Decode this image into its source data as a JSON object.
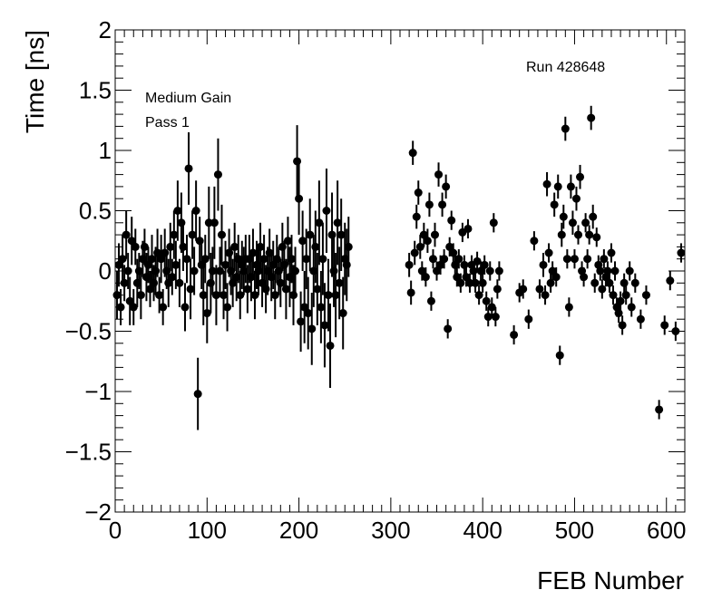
{
  "chart_data": {
    "type": "scatter",
    "title": "",
    "xlabel": "FEB Number",
    "ylabel": "Time [ns]",
    "xlim": [
      0,
      620
    ],
    "ylim": [
      -2,
      2
    ],
    "x_ticks": [
      0,
      100,
      200,
      300,
      400,
      500,
      600
    ],
    "y_ticks": [
      -2,
      -1.5,
      -1,
      -0.5,
      0,
      0.5,
      1,
      1.5,
      2
    ],
    "x_tick_labels": [
      "0",
      "100",
      "200",
      "300",
      "400",
      "500",
      "600"
    ],
    "y_tick_labels": [
      "−2",
      "−1.5",
      "−1",
      "−0.5",
      "0",
      "0.5",
      "1",
      "1.5",
      "2"
    ],
    "annotations": {
      "gain": "Medium Gain",
      "pass": "Pass 1",
      "run": "Run 428648"
    },
    "grid": false,
    "marker_color": "#000000",
    "series": [
      {
        "points": [
          [
            2,
            -0.2,
            0.2
          ],
          [
            4,
            0.05,
            0.18
          ],
          [
            6,
            -0.3,
            0.15
          ],
          [
            8,
            0.1,
            0.2
          ],
          [
            10,
            -0.1,
            0.15
          ],
          [
            12,
            0.3,
            0.2
          ],
          [
            14,
            0.0,
            0.15
          ],
          [
            16,
            -0.25,
            0.2
          ],
          [
            18,
            0.25,
            0.2
          ],
          [
            20,
            -0.3,
            0.15
          ],
          [
            22,
            0.2,
            0.15
          ],
          [
            24,
            -0.1,
            0.2
          ],
          [
            26,
            0.0,
            0.15
          ],
          [
            28,
            -0.2,
            0.2
          ],
          [
            30,
            0.1,
            0.15
          ],
          [
            32,
            0.2,
            0.15
          ],
          [
            34,
            -0.05,
            0.2
          ],
          [
            36,
            0.05,
            0.15
          ],
          [
            38,
            -0.15,
            0.15
          ],
          [
            40,
            0.1,
            0.2
          ],
          [
            42,
            -0.1,
            0.15
          ],
          [
            44,
            0.0,
            0.2
          ],
          [
            46,
            0.15,
            0.2
          ],
          [
            48,
            -0.2,
            0.15
          ],
          [
            50,
            0.1,
            0.2
          ],
          [
            52,
            -0.3,
            0.15
          ],
          [
            54,
            0.15,
            0.2
          ],
          [
            56,
            0.0,
            0.15
          ],
          [
            58,
            -0.1,
            0.2
          ],
          [
            60,
            0.2,
            0.2
          ],
          [
            62,
            -0.05,
            0.15
          ],
          [
            64,
            0.3,
            0.2
          ],
          [
            66,
            0.05,
            0.2
          ],
          [
            68,
            0.5,
            0.25
          ],
          [
            70,
            -0.1,
            0.2
          ],
          [
            72,
            0.4,
            0.25
          ],
          [
            74,
            0.2,
            0.2
          ],
          [
            76,
            -0.3,
            0.2
          ],
          [
            78,
            0.1,
            0.2
          ],
          [
            80,
            0.85,
            0.3
          ],
          [
            82,
            -0.15,
            0.25
          ],
          [
            84,
            0.3,
            0.2
          ],
          [
            86,
            0.0,
            0.2
          ],
          [
            88,
            0.5,
            0.25
          ],
          [
            90,
            -1.02,
            0.3
          ],
          [
            92,
            0.25,
            0.2
          ],
          [
            94,
            0.05,
            0.2
          ],
          [
            96,
            -0.2,
            0.25
          ],
          [
            98,
            0.1,
            0.2
          ],
          [
            100,
            -0.35,
            0.25
          ],
          [
            102,
            0.4,
            0.3
          ],
          [
            104,
            -0.1,
            0.25
          ],
          [
            106,
            0.0,
            0.2
          ],
          [
            108,
            0.4,
            0.3
          ],
          [
            110,
            -0.2,
            0.25
          ],
          [
            112,
            0.8,
            0.3
          ],
          [
            114,
            0.0,
            0.2
          ],
          [
            116,
            0.3,
            0.25
          ],
          [
            118,
            -0.2,
            0.2
          ],
          [
            120,
            0.05,
            0.2
          ],
          [
            122,
            -0.3,
            0.2
          ],
          [
            124,
            0.15,
            0.2
          ],
          [
            126,
            0.0,
            0.2
          ],
          [
            128,
            -0.1,
            0.2
          ],
          [
            130,
            0.2,
            0.2
          ],
          [
            132,
            -0.05,
            0.2
          ],
          [
            134,
            0.1,
            0.2
          ],
          [
            136,
            -0.2,
            0.2
          ],
          [
            138,
            0.05,
            0.2
          ],
          [
            140,
            0.0,
            0.2
          ],
          [
            142,
            0.1,
            0.2
          ],
          [
            144,
            -0.15,
            0.2
          ],
          [
            146,
            0.1,
            0.2
          ],
          [
            148,
            -0.05,
            0.2
          ],
          [
            150,
            0.15,
            0.2
          ],
          [
            152,
            -0.2,
            0.2
          ],
          [
            154,
            0.05,
            0.2
          ],
          [
            156,
            0.0,
            0.2
          ],
          [
            158,
            0.2,
            0.2
          ],
          [
            160,
            -0.1,
            0.2
          ],
          [
            162,
            0.1,
            0.2
          ],
          [
            164,
            -0.15,
            0.2
          ],
          [
            166,
            0.0,
            0.2
          ],
          [
            168,
            0.15,
            0.2
          ],
          [
            170,
            -0.05,
            0.2
          ],
          [
            172,
            0.05,
            0.2
          ],
          [
            174,
            -0.2,
            0.2
          ],
          [
            176,
            0.1,
            0.2
          ],
          [
            178,
            0.0,
            0.2
          ],
          [
            180,
            -0.1,
            0.2
          ],
          [
            182,
            0.2,
            0.2
          ],
          [
            184,
            0.05,
            0.2
          ],
          [
            186,
            -0.15,
            0.25
          ],
          [
            188,
            0.25,
            0.2
          ],
          [
            190,
            -0.05,
            0.25
          ],
          [
            192,
            0.1,
            0.2
          ],
          [
            194,
            -0.2,
            0.25
          ],
          [
            196,
            0.0,
            0.2
          ],
          [
            198,
            0.91,
            0.3
          ],
          [
            200,
            0.6,
            0.3
          ],
          [
            202,
            -0.42,
            0.25
          ],
          [
            204,
            0.25,
            0.25
          ],
          [
            206,
            -0.3,
            0.3
          ],
          [
            208,
            0.1,
            0.25
          ],
          [
            210,
            -0.35,
            0.3
          ],
          [
            212,
            0.3,
            0.3
          ],
          [
            214,
            -0.48,
            0.3
          ],
          [
            216,
            0.0,
            0.3
          ],
          [
            218,
            0.2,
            0.3
          ],
          [
            220,
            -0.15,
            0.3
          ],
          [
            222,
            0.4,
            0.35
          ],
          [
            224,
            -0.3,
            0.3
          ],
          [
            226,
            0.1,
            0.3
          ],
          [
            228,
            -0.45,
            0.35
          ],
          [
            230,
            0.5,
            0.35
          ],
          [
            232,
            -0.2,
            0.3
          ],
          [
            234,
            -0.62,
            0.35
          ],
          [
            236,
            0.3,
            0.35
          ],
          [
            238,
            0.0,
            0.3
          ],
          [
            240,
            -0.2,
            0.35
          ],
          [
            242,
            0.4,
            0.35
          ],
          [
            244,
            -0.1,
            0.3
          ],
          [
            246,
            0.3,
            0.3
          ],
          [
            248,
            -0.35,
            0.3
          ],
          [
            250,
            0.1,
            0.3
          ],
          [
            252,
            0.05,
            0.3
          ],
          [
            254,
            0.2,
            0.25
          ],
          [
            320,
            0.05,
            0.1
          ],
          [
            322,
            -0.18,
            0.1
          ],
          [
            324,
            0.98,
            0.1
          ],
          [
            326,
            0.15,
            0.1
          ],
          [
            328,
            0.45,
            0.1
          ],
          [
            330,
            0.65,
            0.1
          ],
          [
            332,
            0.2,
            0.1
          ],
          [
            334,
            0.0,
            0.08
          ],
          [
            336,
            0.3,
            0.1
          ],
          [
            338,
            -0.05,
            0.08
          ],
          [
            340,
            0.25,
            0.1
          ],
          [
            342,
            0.55,
            0.1
          ],
          [
            344,
            -0.25,
            0.08
          ],
          [
            346,
            0.1,
            0.08
          ],
          [
            348,
            0.3,
            0.1
          ],
          [
            350,
            0.0,
            0.08
          ],
          [
            352,
            0.8,
            0.1
          ],
          [
            354,
            0.05,
            0.08
          ],
          [
            356,
            0.55,
            0.1
          ],
          [
            358,
            0.1,
            0.08
          ],
          [
            360,
            0.7,
            0.1
          ],
          [
            362,
            -0.48,
            0.08
          ],
          [
            364,
            0.2,
            0.08
          ],
          [
            366,
            0.42,
            0.08
          ],
          [
            368,
            0.15,
            0.08
          ],
          [
            370,
            0.05,
            0.08
          ],
          [
            372,
            -0.05,
            0.08
          ],
          [
            374,
            0.1,
            0.08
          ],
          [
            376,
            -0.1,
            0.08
          ],
          [
            378,
            0.32,
            0.08
          ],
          [
            380,
            0.05,
            0.08
          ],
          [
            382,
            -0.05,
            0.08
          ],
          [
            384,
            0.35,
            0.08
          ],
          [
            386,
            -0.1,
            0.08
          ],
          [
            388,
            0.05,
            0.08
          ],
          [
            390,
            0.0,
            0.08
          ],
          [
            392,
            -0.1,
            0.08
          ],
          [
            394,
            0.08,
            0.08
          ],
          [
            396,
            -0.2,
            0.08
          ],
          [
            398,
            0.0,
            0.08
          ],
          [
            400,
            -0.1,
            0.08
          ],
          [
            402,
            0.05,
            0.08
          ],
          [
            404,
            -0.25,
            0.08
          ],
          [
            406,
            -0.38,
            0.08
          ],
          [
            408,
            0.0,
            0.08
          ],
          [
            410,
            -0.3,
            0.08
          ],
          [
            412,
            0.4,
            0.08
          ],
          [
            414,
            -0.38,
            0.08
          ],
          [
            416,
            -0.15,
            0.08
          ],
          [
            418,
            0.0,
            0.08
          ],
          [
            434,
            -0.53,
            0.08
          ],
          [
            440,
            -0.18,
            0.08
          ],
          [
            444,
            -0.15,
            0.08
          ],
          [
            450,
            -0.4,
            0.08
          ],
          [
            456,
            0.25,
            0.08
          ],
          [
            462,
            -0.15,
            0.08
          ],
          [
            466,
            0.05,
            0.1
          ],
          [
            468,
            -0.2,
            0.08
          ],
          [
            470,
            0.72,
            0.1
          ],
          [
            472,
            0.15,
            0.08
          ],
          [
            474,
            -0.1,
            0.08
          ],
          [
            476,
            0.0,
            0.08
          ],
          [
            478,
            0.55,
            0.1
          ],
          [
            480,
            -0.05,
            0.08
          ],
          [
            482,
            0.7,
            0.1
          ],
          [
            484,
            -0.7,
            0.08
          ],
          [
            486,
            0.3,
            0.1
          ],
          [
            488,
            0.45,
            0.1
          ],
          [
            490,
            1.18,
            0.1
          ],
          [
            492,
            0.1,
            0.08
          ],
          [
            494,
            -0.3,
            0.08
          ],
          [
            496,
            0.7,
            0.1
          ],
          [
            498,
            0.4,
            0.1
          ],
          [
            500,
            0.1,
            0.08
          ],
          [
            502,
            0.6,
            0.1
          ],
          [
            504,
            0.3,
            0.08
          ],
          [
            506,
            0.78,
            0.1
          ],
          [
            508,
            0.0,
            0.08
          ],
          [
            510,
            -0.05,
            0.08
          ],
          [
            512,
            0.4,
            0.08
          ],
          [
            514,
            0.1,
            0.08
          ],
          [
            516,
            0.3,
            0.08
          ],
          [
            518,
            1.27,
            0.1
          ],
          [
            520,
            0.45,
            0.1
          ],
          [
            522,
            -0.1,
            0.08
          ],
          [
            524,
            0.28,
            0.08
          ],
          [
            526,
            0.05,
            0.08
          ],
          [
            528,
            0.0,
            0.08
          ],
          [
            530,
            -0.15,
            0.08
          ],
          [
            532,
            0.1,
            0.08
          ],
          [
            534,
            -0.05,
            0.08
          ],
          [
            536,
            0.0,
            0.08
          ],
          [
            538,
            -0.1,
            0.08
          ],
          [
            540,
            0.15,
            0.08
          ],
          [
            542,
            -0.2,
            0.08
          ],
          [
            544,
            0.0,
            0.08
          ],
          [
            546,
            -0.3,
            0.08
          ],
          [
            548,
            -0.35,
            0.08
          ],
          [
            550,
            -0.25,
            0.08
          ],
          [
            552,
            -0.45,
            0.08
          ],
          [
            554,
            -0.1,
            0.08
          ],
          [
            556,
            -0.2,
            0.08
          ],
          [
            560,
            0.0,
            0.08
          ],
          [
            562,
            -0.3,
            0.08
          ],
          [
            566,
            -0.1,
            0.08
          ],
          [
            572,
            -0.4,
            0.08
          ],
          [
            578,
            -0.2,
            0.08
          ],
          [
            592,
            -1.15,
            0.08
          ],
          [
            598,
            -0.45,
            0.08
          ],
          [
            604,
            -0.08,
            0.08
          ],
          [
            610,
            -0.5,
            0.08
          ],
          [
            616,
            0.15,
            0.08
          ]
        ]
      }
    ]
  }
}
